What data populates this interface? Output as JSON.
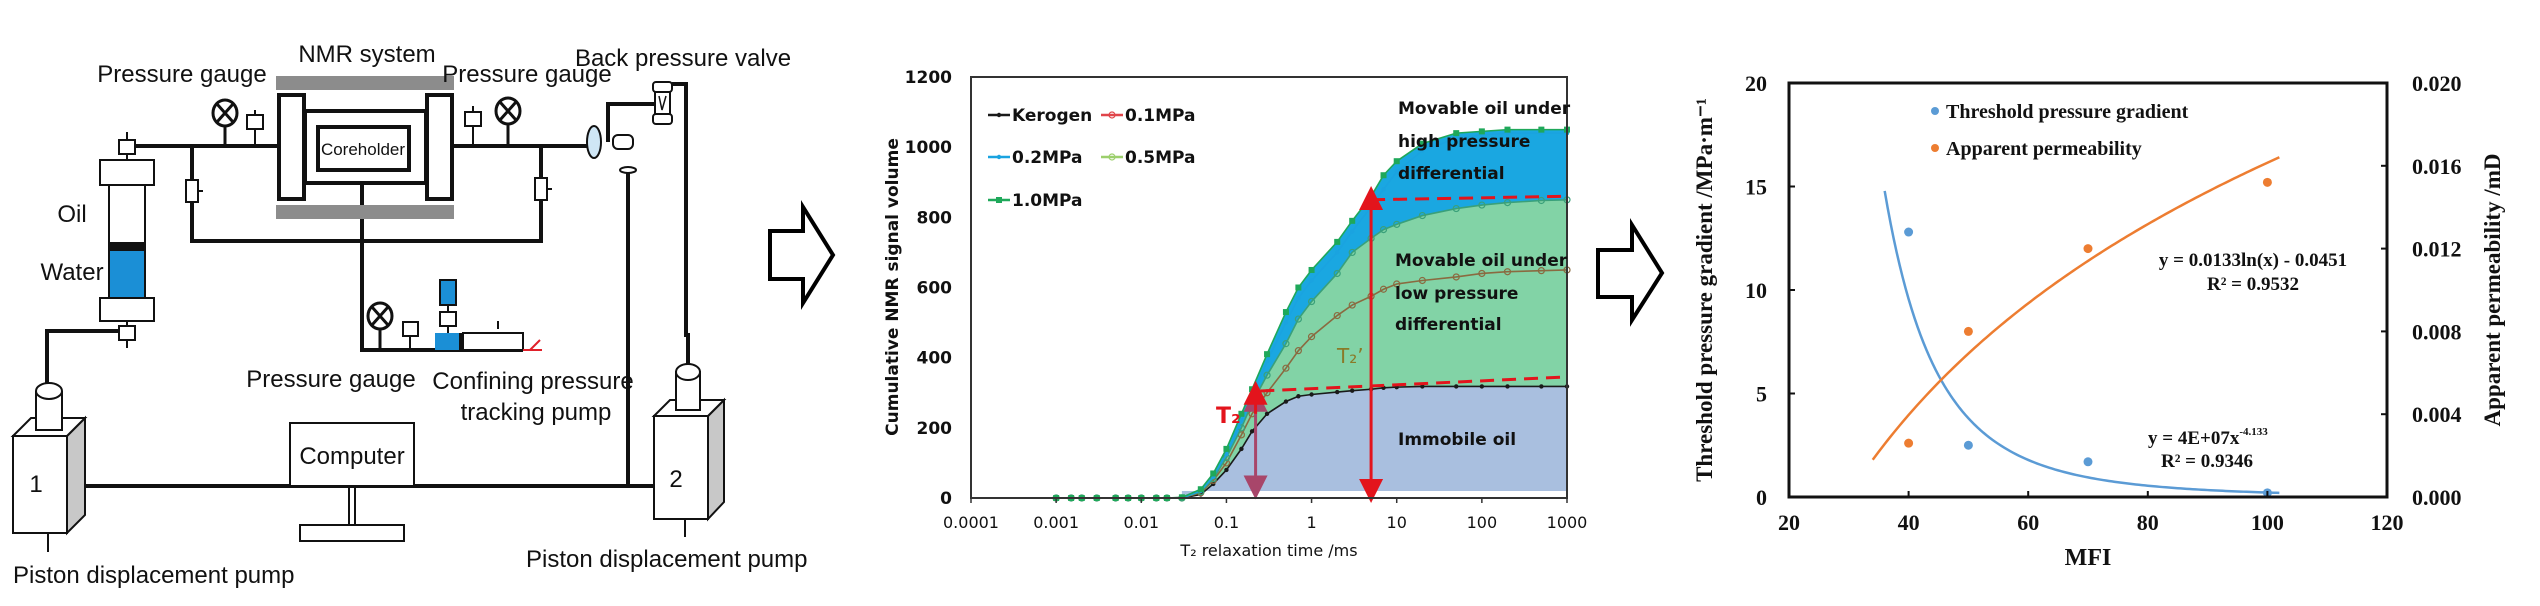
{
  "diagram": {
    "nmr_system": "NMR system",
    "coreholder": "Coreholder",
    "pressure_gauge_left": "Pressure gauge",
    "pressure_gauge_right": "Pressure gauge",
    "pressure_gauge_bottom": "Pressure gauge",
    "back_pressure_valve": "Back pressure valve",
    "oil": "Oil",
    "water": "Water",
    "confining_pump_line1": "Confining pressure",
    "confining_pump_line2": "tracking pump",
    "computer": "Computer",
    "pump1_number": "1",
    "pump2_number": "2",
    "pump1_label": "Piston displacement pump",
    "pump2_label": "Piston displacement pump",
    "colors": {
      "water": "#1b8fd6",
      "valve": "#cfe6f5",
      "handle": "#e0202a",
      "magnet": "#8c8c8c"
    }
  },
  "chart_data": [
    {
      "type": "area",
      "xlabel": "T₂ relaxation time /ms",
      "ylabel": "Cumulative NMR signal volume",
      "xscale": "log",
      "xlim": [
        0.0001,
        1000
      ],
      "ylim": [
        0,
        1200
      ],
      "xticks": [
        "0.0001",
        "0.001",
        "0.01",
        "0.1",
        "1",
        "10",
        "100",
        "1000"
      ],
      "yticks": [
        "0",
        "200",
        "400",
        "600",
        "800",
        "1000",
        "1200"
      ],
      "legend_position": "top-left",
      "x": [
        0.001,
        0.0015,
        0.002,
        0.003,
        0.005,
        0.007,
        0.01,
        0.015,
        0.02,
        0.03,
        0.05,
        0.07,
        0.1,
        0.15,
        0.2,
        0.3,
        0.5,
        0.7,
        1,
        2,
        3,
        5,
        7,
        10,
        20,
        50,
        100,
        200,
        500,
        1000
      ],
      "series": [
        {
          "name": "Kerogen",
          "color": "#1a1a1a",
          "marker": "dot",
          "values": [
            0,
            0,
            0,
            0,
            0,
            0,
            0,
            0,
            0,
            0,
            10,
            40,
            80,
            140,
            190,
            240,
            275,
            290,
            295,
            302,
            306,
            310,
            314,
            316,
            318,
            318,
            318,
            318,
            318,
            318
          ]
        },
        {
          "name": "0.1MPa",
          "color": "#e0454a",
          "marker": "open-circle",
          "values": [
            0,
            0,
            0,
            0,
            0,
            0,
            0,
            0,
            0,
            0,
            15,
            50,
            100,
            180,
            240,
            300,
            370,
            420,
            460,
            520,
            550,
            575,
            595,
            610,
            620,
            630,
            640,
            645,
            648,
            650
          ]
        },
        {
          "name": "0.2MPa",
          "color": "#1aa3e0",
          "marker": "dot",
          "values": [
            0,
            0,
            0,
            0,
            0,
            0,
            0,
            0,
            0,
            0,
            20,
            60,
            125,
            220,
            290,
            390,
            500,
            570,
            620,
            700,
            760,
            830,
            880,
            930,
            990,
            1025,
            1035,
            1040,
            1040,
            1040
          ]
        },
        {
          "name": "0.5MPa",
          "color": "#9ccf6c",
          "marker": "open-circle",
          "values": [
            0,
            0,
            0,
            0,
            0,
            0,
            0,
            0,
            0,
            0,
            18,
            55,
            115,
            200,
            270,
            350,
            440,
            510,
            560,
            640,
            700,
            740,
            765,
            780,
            805,
            825,
            835,
            842,
            848,
            850
          ]
        },
        {
          "name": "1.0MPa",
          "color": "#1fa85a",
          "marker": "square",
          "values": [
            0,
            0,
            0,
            0,
            0,
            0,
            0,
            0,
            0,
            2,
            25,
            70,
            140,
            240,
            310,
            410,
            530,
            600,
            650,
            730,
            790,
            860,
            920,
            960,
            1010,
            1040,
            1045,
            1050,
            1050,
            1050
          ]
        }
      ],
      "regions": {
        "high": {
          "lines": [
            "Movable oil under",
            "high pressure",
            "differential"
          ],
          "color": "#1aa7e1"
        },
        "low": {
          "lines": [
            "Movable oil under",
            "low pressure",
            "differential"
          ],
          "color": "#82d3a6"
        },
        "immobile": {
          "lines": [
            "Immobile oil"
          ],
          "color": "#a9bfdf"
        }
      },
      "annotations": {
        "t2": "T₂",
        "t2_prime": "T₂’",
        "t2_color": "#e3141c",
        "t2_prime_color": "#8a7a28",
        "arrow_color": "#e3141c",
        "short_arrow_color": "#a8466a",
        "t2_arrow_x": 0.22,
        "t2_prime_arrow_x": 5,
        "dashed_low": [
          [
            0.25,
            305
          ],
          [
            1000,
            345
          ]
        ],
        "dashed_high": [
          [
            5,
            850
          ],
          [
            1000,
            860
          ]
        ]
      }
    },
    {
      "type": "scatter",
      "xlabel": "MFI",
      "ylabel_left": "Threshold pressure gradient /MPa·m⁻¹",
      "ylabel_right": "Apparent permeability /mD",
      "xlim": [
        20,
        120
      ],
      "ylim_left": [
        0,
        20
      ],
      "ylim_right": [
        0,
        0.02
      ],
      "xticks": [
        "20",
        "40",
        "60",
        "80",
        "100",
        "120"
      ],
      "yticks_left": [
        "0",
        "5",
        "10",
        "15",
        "20"
      ],
      "yticks_right": [
        "0.000",
        "0.004",
        "0.008",
        "0.012",
        "0.016",
        "0.020"
      ],
      "legend_position": "top-left",
      "series": [
        {
          "name": "Threshold pressure gradient",
          "axis": "left",
          "color": "#5b9bd5",
          "x": [
            40,
            50,
            70,
            100
          ],
          "y": [
            12.8,
            2.5,
            1.7,
            0.2
          ],
          "fit": {
            "type": "power",
            "a": 40000000.0,
            "b": -4.133,
            "range": [
              36,
              102
            ],
            "equation": "y = 4E+07x",
            "exponent": "-4.133",
            "r2": "R² = 0.9346"
          }
        },
        {
          "name": "Apparent permeability",
          "axis": "right",
          "color": "#ed7d31",
          "x": [
            40,
            50,
            70,
            100
          ],
          "y": [
            0.0026,
            0.008,
            0.012,
            0.0152
          ],
          "fit": {
            "type": "log",
            "a": 0.0133,
            "b": -0.0451,
            "range": [
              34,
              102
            ],
            "equation": "y = 0.0133ln(x) - 0.0451",
            "r2": "R² = 0.9532"
          }
        }
      ]
    }
  ]
}
